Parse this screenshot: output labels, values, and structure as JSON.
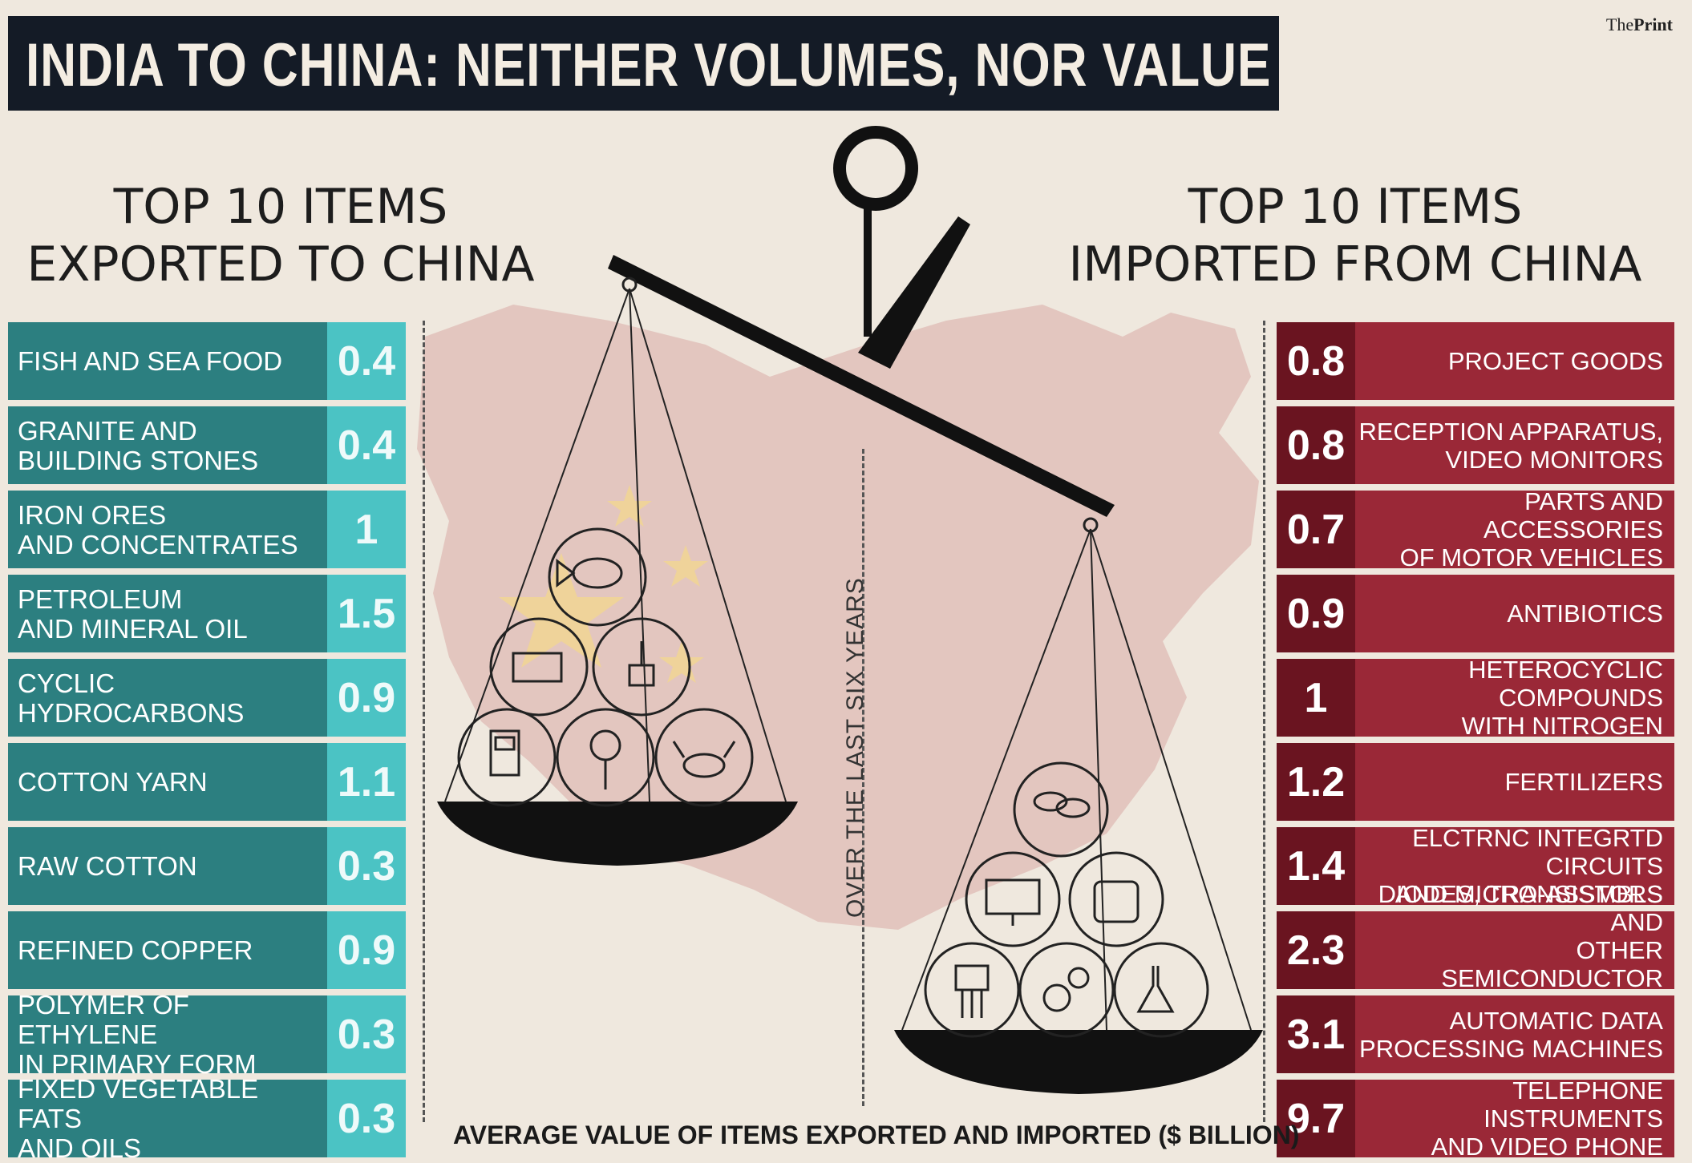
{
  "header": {
    "title": "INDIA TO CHINA: NEITHER VOLUMES, NOR VALUE",
    "brand_prefix": "The",
    "brand_name": "Print"
  },
  "colors": {
    "export_label_bg": "#2c7f80",
    "export_value_bg": "#4bc3c4",
    "import_label_bg": "#9a2837",
    "import_value_bg": "#6a1420",
    "title_bg": "#141b26"
  },
  "exports": {
    "heading_line1": "TOP 10 ITEMS",
    "heading_line2": "EXPORTED TO CHINA",
    "pan_icons": [
      "fish-icon",
      "brick-icon",
      "plug-plant-icon",
      "fuel-pump-icon",
      "cotton-icon",
      "crab-icon"
    ]
  },
  "imports": {
    "heading_line1": "TOP 10 ITEMS",
    "heading_line2": "IMPORTED FROM CHINA",
    "pan_icons": [
      "pills-icon",
      "monitor-icon",
      "fertilizer-bag-icon",
      "transistor-icon",
      "gears-icon",
      "flask-icon"
    ]
  },
  "middle_label": "OVER THE LAST SIX YEARS",
  "footnote": "AVERAGE VALUE OF ITEMS EXPORTED AND IMPORTED ($ BILLION)",
  "chart_data": [
    {
      "type": "table",
      "title": "TOP 10 ITEMS EXPORTED TO CHINA",
      "unit": "$ BILLION",
      "rows": [
        {
          "label_lines": [
            "FISH AND SEA FOOD"
          ],
          "value": "0.4"
        },
        {
          "label_lines": [
            "GRANITE AND",
            "BUILDING STONES"
          ],
          "value": "0.4"
        },
        {
          "label_lines": [
            "IRON ORES",
            "AND CONCENTRATES"
          ],
          "value": "1"
        },
        {
          "label_lines": [
            "PETROLEUM",
            "AND MINERAL OIL"
          ],
          "value": "1.5"
        },
        {
          "label_lines": [
            "CYCLIC HYDROCARBONS"
          ],
          "value": "0.9"
        },
        {
          "label_lines": [
            "COTTON YARN"
          ],
          "value": "1.1"
        },
        {
          "label_lines": [
            "RAW COTTON"
          ],
          "value": "0.3"
        },
        {
          "label_lines": [
            "REFINED COPPER"
          ],
          "value": "0.9"
        },
        {
          "label_lines": [
            "POLYMER OF ETHYLENE",
            "IN PRIMARY FORM"
          ],
          "value": "0.3"
        },
        {
          "label_lines": [
            "FIXED VEGETABLE FATS",
            "AND OILS"
          ],
          "value": "0.3"
        }
      ]
    },
    {
      "type": "table",
      "title": "TOP 10 ITEMS IMPORTED FROM CHINA",
      "unit": "$ BILLION",
      "rows": [
        {
          "label_lines": [
            "PROJECT GOODS"
          ],
          "value": "0.8"
        },
        {
          "label_lines": [
            "RECEPTION APPARATUS,",
            "VIDEO MONITORS"
          ],
          "value": "0.8"
        },
        {
          "label_lines": [
            "PARTS AND ACCESSORIES",
            "OF MOTOR VEHICLES"
          ],
          "value": "0.7"
        },
        {
          "label_lines": [
            "ANTIBIOTICS"
          ],
          "value": "0.9"
        },
        {
          "label_lines": [
            "HETEROCYCLIC COMPOUNDS",
            "WITH NITROGEN"
          ],
          "value": "1"
        },
        {
          "label_lines": [
            "FERTILIZERS"
          ],
          "value": "1.2"
        },
        {
          "label_lines": [
            "ELCTRNC INTEGRTD CIRCUITS",
            "AND MICRO-ASSMBLS"
          ],
          "value": "1.4"
        },
        {
          "label_lines": [
            "DIODES, TRANSISTORS AND",
            "OTHER SEMICONDUCTOR DEVICES"
          ],
          "value": "2.3"
        },
        {
          "label_lines": [
            "AUTOMATIC DATA",
            "PROCESSING MACHINES"
          ],
          "value": "3.1"
        },
        {
          "label_lines": [
            "TELEPHONE INSTRUMENTS",
            "AND VIDEO PHONE"
          ],
          "value": "9.7"
        }
      ]
    }
  ]
}
